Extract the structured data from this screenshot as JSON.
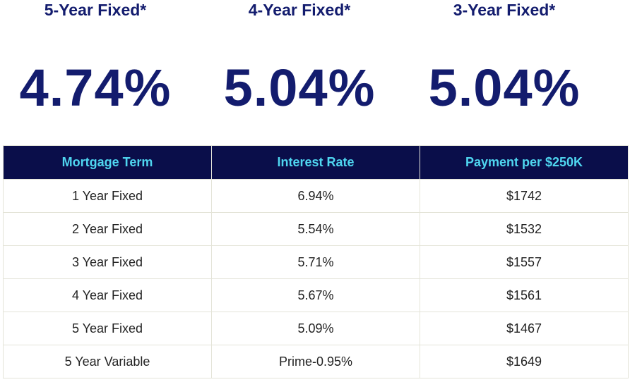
{
  "featured_rates": [
    {
      "title": "5-Year Fixed*",
      "rate": "4.74%"
    },
    {
      "title": "4-Year Fixed*",
      "rate": "5.04%"
    },
    {
      "title": "3-Year Fixed*",
      "rate": "5.04%"
    }
  ],
  "table": {
    "headers": [
      "Mortgage Term",
      "Interest Rate",
      "Payment per $250K"
    ],
    "rows": [
      [
        "1 Year Fixed",
        "6.94%",
        "$1742"
      ],
      [
        "2 Year Fixed",
        "5.54%",
        "$1532"
      ],
      [
        "3 Year Fixed",
        "5.71%",
        "$1557"
      ],
      [
        "4 Year Fixed",
        "5.67%",
        "$1561"
      ],
      [
        "5 Year Fixed",
        "5.09%",
        "$1467"
      ],
      [
        "5 Year Variable",
        "Prime-0.95%",
        "$1649"
      ]
    ]
  },
  "colors": {
    "feature_text": "#131c6e",
    "header_bg": "#0a0e4a",
    "header_text": "#4fd6f0",
    "cell_border": "#e4e4d8"
  }
}
